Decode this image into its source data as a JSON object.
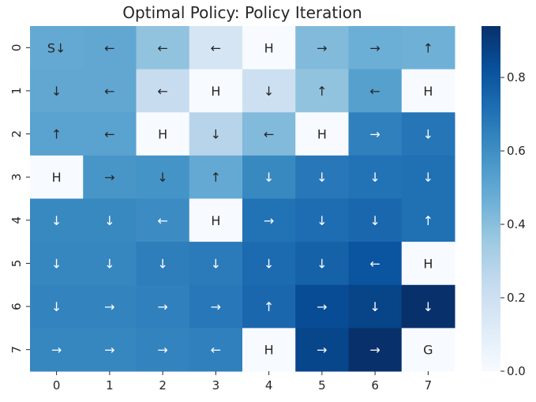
{
  "chart_data": {
    "type": "heatmap",
    "title": "Optimal Policy: Policy Iteration",
    "x_ticks": [
      "0",
      "1",
      "2",
      "3",
      "4",
      "5",
      "6",
      "7"
    ],
    "y_ticks": [
      "0",
      "1",
      "2",
      "3",
      "4",
      "5",
      "6",
      "7"
    ],
    "values": [
      [
        0.49,
        0.5,
        0.38,
        0.16,
        0.0,
        0.42,
        0.47,
        0.46
      ],
      [
        0.5,
        0.5,
        0.23,
        0.0,
        0.2,
        0.38,
        0.53,
        0.0
      ],
      [
        0.52,
        0.52,
        0.0,
        0.28,
        0.42,
        0.0,
        0.65,
        0.69
      ],
      [
        0.0,
        0.57,
        0.58,
        0.49,
        0.62,
        0.68,
        0.7,
        0.71
      ],
      [
        0.62,
        0.62,
        0.61,
        0.0,
        0.7,
        0.72,
        0.74,
        0.71
      ],
      [
        0.63,
        0.63,
        0.66,
        0.67,
        0.73,
        0.76,
        0.81,
        0.0
      ],
      [
        0.64,
        0.64,
        0.65,
        0.68,
        0.74,
        0.84,
        0.87,
        0.94
      ],
      [
        0.63,
        0.63,
        0.64,
        0.65,
        0.0,
        0.86,
        0.94,
        0.0
      ]
    ],
    "cell_labels": [
      [
        "S↓",
        "←",
        "←",
        "←",
        "H",
        "→",
        "→",
        "↑"
      ],
      [
        "↓",
        "←",
        "←",
        "H",
        "↓",
        "↑",
        "←",
        "H"
      ],
      [
        "↑",
        "←",
        "H",
        "↓",
        "←",
        "H",
        "→",
        "↓"
      ],
      [
        "H",
        "→",
        "↓",
        "↑",
        "↓",
        "↓",
        "↓",
        "↓"
      ],
      [
        "↓",
        "↓",
        "←",
        "H",
        "→",
        "↓",
        "↓",
        "↑"
      ],
      [
        "↓",
        "↓",
        "↓",
        "↓",
        "↓",
        "↓",
        "←",
        "H"
      ],
      [
        "↓",
        "→",
        "→",
        "→",
        "↑",
        "→",
        "↓",
        "↓"
      ],
      [
        "→",
        "→",
        "→",
        "←",
        "H",
        "→",
        "→",
        "G"
      ]
    ],
    "vmin": 0.0,
    "vmax": 0.94,
    "colormap": "Blues",
    "colormap_stops": [
      "#f7fbff",
      "#deebf7",
      "#c6dbef",
      "#9ecae1",
      "#6baed6",
      "#4292c6",
      "#2171b5",
      "#08519c",
      "#08306b"
    ],
    "colorbar_ticks": [
      "0.0",
      "0.2",
      "0.4",
      "0.6",
      "0.8"
    ],
    "colorbar_tick_values": [
      0.0,
      0.2,
      0.4,
      0.6,
      0.8
    ],
    "grid": false
  }
}
